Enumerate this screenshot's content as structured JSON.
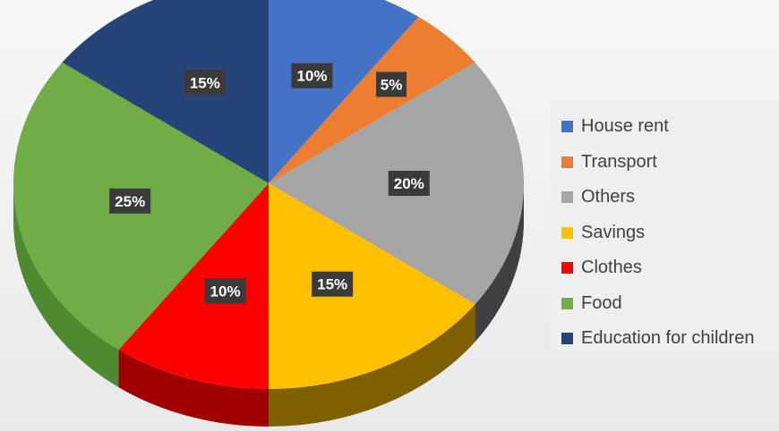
{
  "chart_data": {
    "type": "pie",
    "style": "3d",
    "title": "",
    "start_angle_deg": 0,
    "direction": "clockwise",
    "legend_position": "right",
    "slices": [
      {
        "label": "House rent",
        "value": 10,
        "display": "10%",
        "color": "#4472c4",
        "side_color": "#2f5597"
      },
      {
        "label": "Transport",
        "value": 5,
        "display": "5%",
        "color": "#ed7d31",
        "side_color": "#b35a1f"
      },
      {
        "label": "Others",
        "value": 20,
        "display": "20%",
        "color": "#a5a5a5",
        "side_color": "#404040"
      },
      {
        "label": "Savings",
        "value": 15,
        "display": "15%",
        "color": "#ffc000",
        "side_color": "#7f6000"
      },
      {
        "label": "Clothes",
        "value": 10,
        "display": "10%",
        "color": "#ff0000",
        "side_color": "#a00000"
      },
      {
        "label": "Food",
        "value": 25,
        "display": "25%",
        "color": "#70ad47",
        "side_color": "#4e8a2f"
      },
      {
        "label": "Education for children",
        "value": 15,
        "display": "15%",
        "color": "#264478",
        "side_color": "#1a2f55"
      }
    ]
  }
}
